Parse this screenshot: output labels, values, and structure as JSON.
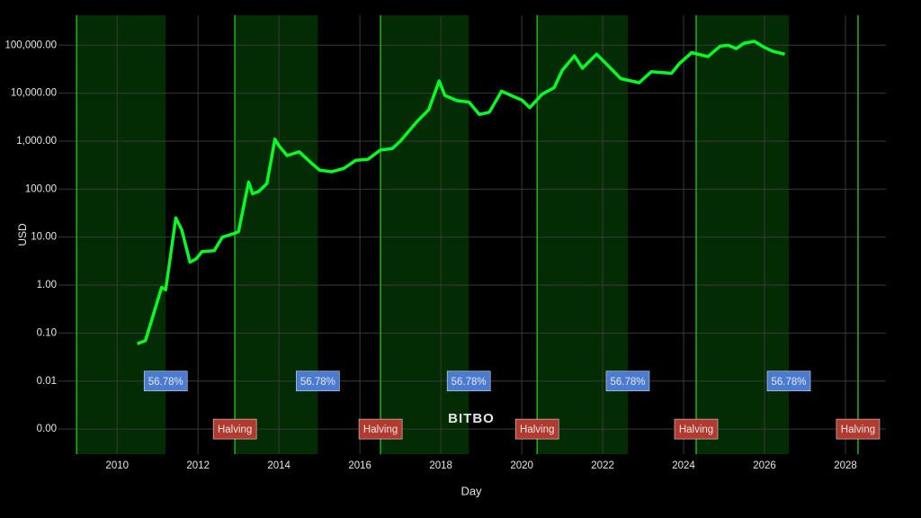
{
  "chart_data": {
    "type": "line",
    "x_label": "Day",
    "y_label": "USD",
    "watermark": "BITBO",
    "log_y": true,
    "grid": true,
    "color": "#00ff22",
    "x": [
      2010.5,
      2010.7,
      2010.9,
      2011.1,
      2011.2,
      2011.45,
      2011.6,
      2011.8,
      2011.95,
      2012.1,
      2012.4,
      2012.6,
      2012.9,
      2013.0,
      2013.25,
      2013.35,
      2013.5,
      2013.7,
      2013.9,
      2014.0,
      2014.2,
      2014.5,
      2014.8,
      2015.0,
      2015.3,
      2015.6,
      2015.9,
      2016.2,
      2016.5,
      2016.8,
      2017.0,
      2017.4,
      2017.7,
      2017.96,
      2018.1,
      2018.4,
      2018.7,
      2018.95,
      2019.2,
      2019.5,
      2019.8,
      2020.0,
      2020.2,
      2020.5,
      2020.8,
      2021.0,
      2021.3,
      2021.5,
      2021.85,
      2022.1,
      2022.45,
      2022.9,
      2023.2,
      2023.7,
      2023.9,
      2024.2,
      2024.6,
      2024.9,
      2025.1,
      2025.3,
      2025.5,
      2025.75,
      2026.0,
      2026.2,
      2026.5
    ],
    "values": [
      0.06,
      0.07,
      0.25,
      0.9,
      0.8,
      25,
      14,
      3,
      3.5,
      5,
      5.2,
      10,
      12,
      13,
      140,
      80,
      90,
      130,
      1100,
      800,
      500,
      600,
      350,
      250,
      230,
      270,
      400,
      420,
      650,
      700,
      1000,
      2500,
      4500,
      18000,
      9000,
      7000,
      6500,
      3600,
      4000,
      11000,
      8500,
      7200,
      5000,
      9500,
      13000,
      30000,
      60000,
      33000,
      65000,
      40000,
      20000,
      16500,
      28000,
      26000,
      42000,
      70000,
      58000,
      95000,
      100000,
      85000,
      110000,
      120000,
      90000,
      75000,
      65000
    ],
    "xlim": [
      2008.55,
      2029
    ],
    "xticks": [
      2010,
      2012,
      2014,
      2016,
      2018,
      2020,
      2022,
      2024,
      2026,
      2028
    ],
    "ylim": [
      0.0003,
      420000
    ],
    "yticks": [
      {
        "value": 0.001,
        "label": "0.00"
      },
      {
        "value": 0.01,
        "label": "0.01"
      },
      {
        "value": 0.1,
        "label": "0.10"
      },
      {
        "value": 1,
        "label": "1.00"
      },
      {
        "value": 10,
        "label": "10.00"
      },
      {
        "value": 100,
        "label": "100.00"
      },
      {
        "value": 1000,
        "label": "1,000.00"
      },
      {
        "value": 10000,
        "label": "10,000.00"
      },
      {
        "value": 100000,
        "label": "100,000.00"
      }
    ],
    "shaded_ranges": [
      [
        2009.0,
        2011.2
      ],
      [
        2012.91,
        2014.96
      ],
      [
        2016.51,
        2018.69
      ],
      [
        2020.38,
        2022.62
      ],
      [
        2024.31,
        2026.6
      ]
    ],
    "shade_color": "#032c03",
    "vlines": [
      2009.0,
      2012.91,
      2016.51,
      2020.38,
      2024.31,
      2028.31
    ],
    "vline_color": "#22b022",
    "annotations": [
      {
        "text": "56.78%",
        "x": 2011.2,
        "y": 0.01,
        "color": "#4a7bd0"
      },
      {
        "text": "56.78%",
        "x": 2014.96,
        "y": 0.01,
        "color": "#4a7bd0"
      },
      {
        "text": "56.78%",
        "x": 2018.69,
        "y": 0.01,
        "color": "#4a7bd0"
      },
      {
        "text": "56.78%",
        "x": 2022.62,
        "y": 0.01,
        "color": "#4a7bd0"
      },
      {
        "text": "56.78%",
        "x": 2026.6,
        "y": 0.01,
        "color": "#4a7bd0"
      },
      {
        "text": "Halving",
        "x": 2012.91,
        "y": 0.001,
        "color": "#b23a2e"
      },
      {
        "text": "Halving",
        "x": 2016.51,
        "y": 0.001,
        "color": "#b23a2e"
      },
      {
        "text": "Halving",
        "x": 2020.38,
        "y": 0.001,
        "color": "#b23a2e"
      },
      {
        "text": "Halving",
        "x": 2024.31,
        "y": 0.001,
        "color": "#b23a2e"
      },
      {
        "text": "Halving",
        "x": 2028.31,
        "y": 0.001,
        "color": "#b23a2e"
      }
    ]
  }
}
